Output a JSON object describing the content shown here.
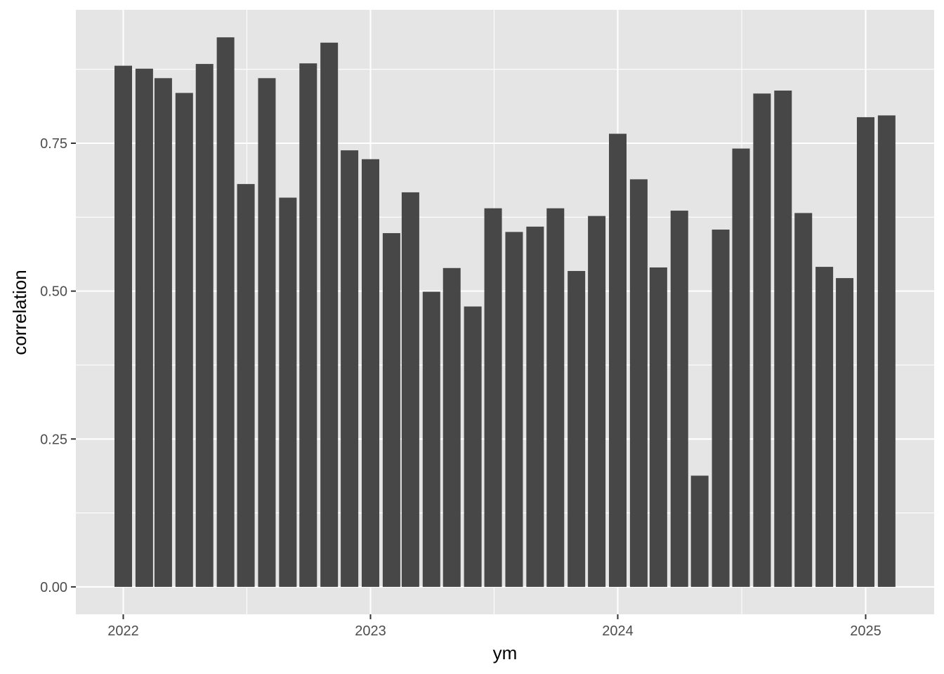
{
  "chart_data": {
    "type": "bar",
    "xlabel": "ym",
    "ylabel": "correlation",
    "x_axis": {
      "type": "date",
      "ticks": [
        "2022-01-01",
        "2023-01-01",
        "2024-01-01",
        "2025-01-01"
      ],
      "tick_labels": [
        "2022",
        "2023",
        "2024",
        "2025"
      ]
    },
    "y_axis": {
      "ticks": [
        0,
        0.25,
        0.5,
        0.75
      ],
      "tick_labels": [
        "0.00",
        "0.25",
        "0.50",
        "0.75"
      ]
    },
    "grid": true,
    "legend": "none",
    "colors": {
      "panel_background": "#e5e5e5",
      "grid": "#ffffff",
      "bar": "#474747",
      "tick_text": "#4d4d4d",
      "axis_title_text": "#000000"
    },
    "categories": [
      "2022-01",
      "2022-02",
      "2022-03",
      "2022-04",
      "2022-05",
      "2022-06",
      "2022-07",
      "2022-08",
      "2022-09",
      "2022-10",
      "2022-11",
      "2022-12",
      "2023-01",
      "2023-02",
      "2023-03",
      "2023-04",
      "2023-05",
      "2023-06",
      "2023-07",
      "2023-08",
      "2023-09",
      "2023-10",
      "2023-11",
      "2023-12",
      "2024-01",
      "2024-02",
      "2024-03",
      "2024-04",
      "2024-05",
      "2024-06",
      "2024-07",
      "2024-08",
      "2024-09",
      "2024-10",
      "2024-11",
      "2024-12",
      "2025-01",
      "2025-02"
    ],
    "values": [
      0.881,
      0.876,
      0.86,
      0.835,
      0.884,
      0.929,
      0.681,
      0.86,
      0.658,
      0.885,
      0.92,
      0.738,
      0.723,
      0.598,
      0.667,
      0.499,
      0.539,
      0.474,
      0.64,
      0.6,
      0.609,
      0.64,
      0.534,
      0.627,
      0.766,
      0.689,
      0.54,
      0.636,
      0.188,
      0.604,
      0.741,
      0.834,
      0.839,
      0.632,
      0.541,
      0.522,
      0.794,
      0.797
    ]
  }
}
